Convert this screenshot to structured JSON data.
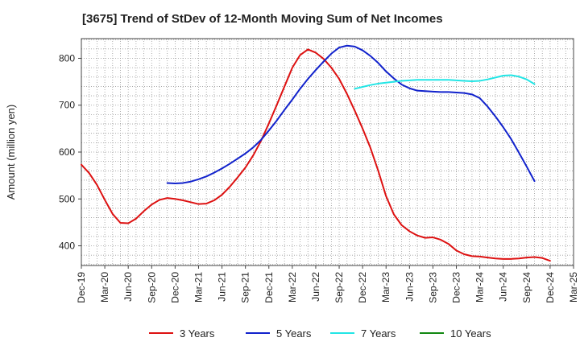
{
  "chart_data": {
    "type": "line",
    "title": "[3675]  Trend of StDev of 12-Month Moving Sum of Net Incomes",
    "xlabel": "",
    "ylabel": "Amount (million yen)",
    "ylim": [
      358,
      842
    ],
    "yticks": [
      400,
      500,
      600,
      700,
      800
    ],
    "x_start": "Dec-19",
    "x_end": "Mar-25",
    "xtick_labels": [
      "Dec-19",
      "Mar-20",
      "Jun-20",
      "Sep-20",
      "Dec-20",
      "Mar-21",
      "Jun-21",
      "Sep-21",
      "Dec-21",
      "Mar-22",
      "Jun-22",
      "Sep-22",
      "Dec-22",
      "Mar-23",
      "Jun-23",
      "Sep-23",
      "Dec-23",
      "Mar-24",
      "Jun-24",
      "Sep-24",
      "Dec-24",
      "Mar-25"
    ],
    "grid": true,
    "legend_position": "bottom",
    "series": [
      {
        "name": "3 Years",
        "color": "#dd1111",
        "start": "Dec-19",
        "values": [
          573,
          555,
          530,
          498,
          468,
          449,
          448,
          458,
          474,
          488,
          498,
          502,
          500,
          497,
          493,
          489,
          490,
          497,
          509,
          526,
          546,
          567,
          593,
          624,
          661,
          700,
          740,
          780,
          807,
          819,
          812,
          799,
          780,
          756,
          724,
          688,
          650,
          609,
          560,
          506,
          467,
          444,
          431,
          422,
          417,
          418,
          413,
          404,
          390,
          382,
          378,
          377,
          375,
          373,
          372,
          372,
          373,
          375,
          376,
          374,
          368
        ]
      },
      {
        "name": "5 Years",
        "color": "#1122cc",
        "start": "Nov-20",
        "values": [
          534,
          533,
          534,
          537,
          542,
          548,
          556,
          565,
          575,
          586,
          597,
          610,
          626,
          646,
          667,
          690,
          712,
          735,
          756,
          775,
          793,
          810,
          823,
          827,
          825,
          817,
          805,
          790,
          772,
          757,
          744,
          736,
          731,
          730,
          729,
          728,
          728,
          727,
          726,
          723,
          715,
          697,
          676,
          653,
          628,
          599,
          569,
          538
        ]
      },
      {
        "name": "7 Years",
        "color": "#22e5e5",
        "start": "Nov-22",
        "values": [
          735,
          739,
          743,
          746,
          748,
          750,
          752,
          753,
          754,
          754,
          754,
          754,
          754,
          753,
          752,
          751,
          752,
          755,
          759,
          763,
          764,
          761,
          755,
          745
        ]
      },
      {
        "name": "10 Years",
        "color": "#118811",
        "start": "Dec-24",
        "values": []
      }
    ]
  }
}
